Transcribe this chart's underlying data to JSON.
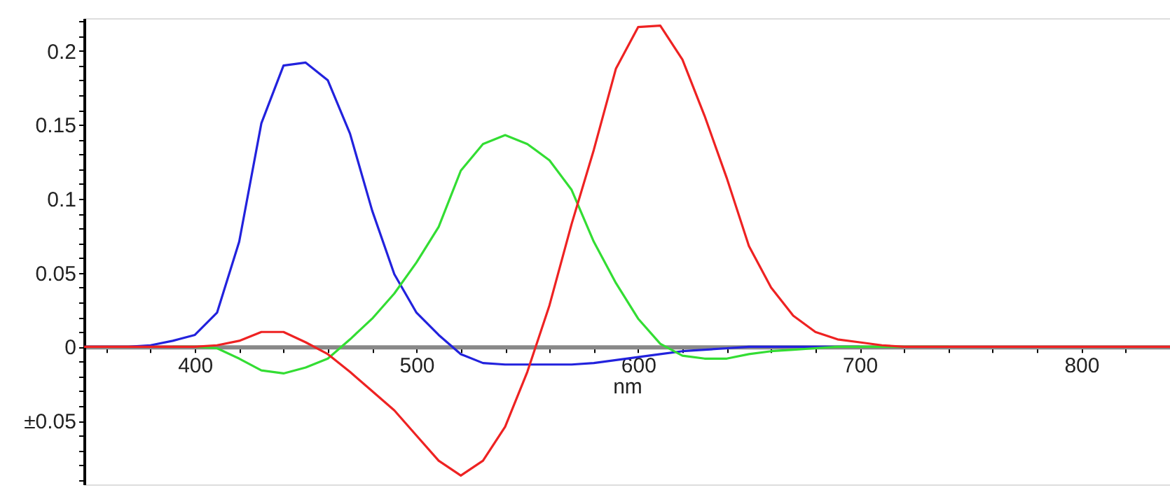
{
  "chart_data": {
    "type": "line",
    "xlabel": "nm",
    "xlim": [
      350,
      840
    ],
    "ylim": [
      -0.093,
      0.222
    ],
    "xticks": [
      {
        "value": 360,
        "label": null
      },
      {
        "value": 380,
        "label": null
      },
      400,
      {
        "value": 420,
        "label": null
      },
      {
        "value": 440,
        "label": null
      },
      {
        "value": 460,
        "label": null
      },
      {
        "value": 480,
        "label": null
      },
      500,
      {
        "value": 520,
        "label": null
      },
      {
        "value": 540,
        "label": null
      },
      {
        "value": 560,
        "label": null
      },
      {
        "value": 580,
        "label": null
      },
      600,
      {
        "value": 620,
        "label": null
      },
      {
        "value": 640,
        "label": null
      },
      {
        "value": 660,
        "label": null
      },
      {
        "value": 680,
        "label": null
      },
      700,
      {
        "value": 720,
        "label": null
      },
      {
        "value": 740,
        "label": null
      },
      {
        "value": 760,
        "label": null
      },
      {
        "value": 780,
        "label": null
      },
      800,
      {
        "value": 820,
        "label": null
      }
    ],
    "yticks": [
      {
        "value": -0.09,
        "label": null
      },
      {
        "value": -0.08,
        "label": null
      },
      {
        "value": -0.07,
        "label": null
      },
      {
        "value": -0.06,
        "label": null
      },
      {
        "value": -0.05,
        "label": "±0.05"
      },
      {
        "value": -0.04,
        "label": null
      },
      {
        "value": -0.03,
        "label": null
      },
      {
        "value": -0.02,
        "label": null
      },
      {
        "value": -0.01,
        "label": null
      },
      0,
      {
        "value": 0.01,
        "label": null
      },
      {
        "value": 0.02,
        "label": null
      },
      {
        "value": 0.03,
        "label": null
      },
      {
        "value": 0.04,
        "label": null
      },
      0.05,
      {
        "value": 0.06,
        "label": null
      },
      {
        "value": 0.07,
        "label": null
      },
      {
        "value": 0.08,
        "label": null
      },
      {
        "value": 0.09,
        "label": null
      },
      0.1,
      {
        "value": 0.11,
        "label": null
      },
      {
        "value": 0.12,
        "label": null
      },
      {
        "value": 0.13,
        "label": null
      },
      {
        "value": 0.14,
        "label": null
      },
      0.15,
      {
        "value": 0.16,
        "label": null
      },
      {
        "value": 0.17,
        "label": null
      },
      {
        "value": 0.18,
        "label": null
      },
      {
        "value": 0.19,
        "label": null
      },
      0.2,
      {
        "value": 0.21,
        "label": null
      },
      {
        "value": 0.22,
        "label": null
      }
    ],
    "grid": false,
    "marker": "none",
    "line_style": "solid",
    "x": [
      350,
      360,
      370,
      380,
      390,
      400,
      410,
      420,
      430,
      440,
      450,
      460,
      470,
      480,
      490,
      500,
      510,
      520,
      530,
      540,
      550,
      560,
      570,
      580,
      590,
      600,
      610,
      620,
      630,
      640,
      650,
      660,
      670,
      680,
      690,
      700,
      710,
      720,
      730,
      740,
      750,
      760,
      770,
      780,
      790,
      800,
      810,
      820,
      830,
      840
    ],
    "series": [
      {
        "color": "#2222dd",
        "values": [
          0,
          0,
          0,
          0.001,
          0.004,
          0.008,
          0.023,
          0.071,
          0.151,
          0.19,
          0.192,
          0.18,
          0.144,
          0.092,
          0.049,
          0.023,
          0.008,
          -0.005,
          -0.011,
          -0.012,
          -0.012,
          -0.012,
          -0.012,
          -0.011,
          -0.009,
          -0.007,
          -0.005,
          -0.003,
          -0.002,
          -0.001,
          0,
          0,
          0,
          0,
          0,
          0,
          null,
          null,
          null,
          null,
          null,
          null,
          null,
          null,
          null,
          null,
          null,
          null,
          null,
          null
        ]
      },
      {
        "color": "#33dd33",
        "values": [
          null,
          null,
          null,
          null,
          0,
          0,
          -0.001,
          -0.008,
          -0.016,
          -0.018,
          -0.014,
          -0.008,
          0.005,
          0.019,
          0.036,
          0.057,
          0.081,
          0.119,
          0.137,
          0.143,
          0.137,
          0.126,
          0.106,
          0.071,
          0.043,
          0.019,
          0.002,
          -0.006,
          -0.008,
          -0.008,
          -0.005,
          -0.003,
          -0.002,
          -0.001,
          0,
          0,
          0,
          0,
          0,
          0,
          null,
          null,
          null,
          null,
          null,
          null,
          null,
          null,
          null,
          null
        ]
      },
      {
        "color": "#ee2222",
        "values": [
          0,
          0,
          0,
          0,
          0,
          0,
          0.001,
          0.004,
          0.01,
          0.01,
          0.003,
          -0.005,
          -0.017,
          -0.03,
          -0.043,
          -0.06,
          -0.077,
          -0.087,
          -0.077,
          -0.054,
          -0.017,
          0.028,
          0.083,
          0.133,
          0.188,
          0.216,
          0.217,
          0.194,
          0.156,
          0.114,
          0.068,
          0.04,
          0.021,
          0.01,
          0.005,
          0.003,
          0.001,
          0,
          0,
          0,
          0,
          0,
          0,
          0,
          0,
          0,
          0,
          0,
          0,
          0
        ]
      }
    ]
  }
}
